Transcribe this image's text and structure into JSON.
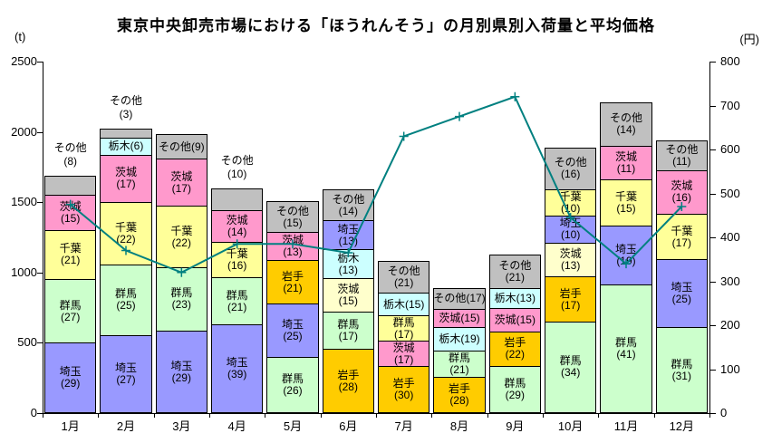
{
  "title": "東京中央卸売市場における「ほうれんそう」の月別県別入荷量と平均価格",
  "left_axis": {
    "unit": "(t)",
    "min": 0,
    "max": 2500,
    "step": 500,
    "tick_labels": [
      "0",
      "500",
      "1000",
      "1500",
      "2000",
      "2500"
    ]
  },
  "right_axis": {
    "unit": "(円)",
    "min": 0,
    "max": 800,
    "step": 100,
    "tick_labels": [
      "0",
      "100",
      "200",
      "300",
      "400",
      "500",
      "600",
      "700",
      "800"
    ]
  },
  "colors": {
    "saitama": "#9999ff",
    "gunma": "#ccffcc",
    "chiba": "#ffff99",
    "ibaraki": "#ff99cc",
    "tochigi": "#ccffff",
    "iwate": "#ffcc00",
    "others": "#c0c0c0",
    "pale_yellow": "#ffffcc",
    "line": "#008080"
  },
  "chart_data": {
    "type": "bar",
    "subtype": "stacked_bar_with_line_overlay",
    "title": "東京中央卸売市場における「ほうれんそう」の月別県別入荷量と平均価格",
    "grid": "off",
    "legend": "none",
    "categories": [
      "1月",
      "2月",
      "3月",
      "4月",
      "5月",
      "6月",
      "7月",
      "8月",
      "9月",
      "10月",
      "11月",
      "12月"
    ],
    "bar_axis": {
      "side": "left",
      "unit": "t",
      "range": [
        0,
        2500
      ]
    },
    "line_axis": {
      "side": "right",
      "unit": "円",
      "range": [
        0,
        800
      ]
    },
    "bar_totals_t": [
      1690,
      2020,
      1985,
      1600,
      1510,
      1590,
      1080,
      890,
      1125,
      1890,
      2210,
      1940
    ],
    "months": [
      {
        "label": "1月",
        "total_t": 1690,
        "others_above": true,
        "segments": [
          {
            "name": "埼玉",
            "pct": 29,
            "color": "#9999ff",
            "lab": "two"
          },
          {
            "name": "群馬",
            "pct": 27,
            "color": "#ccffcc",
            "lab": "two"
          },
          {
            "name": "千葉",
            "pct": 21,
            "color": "#ffff99",
            "lab": "two"
          },
          {
            "name": "茨城",
            "pct": 15,
            "color": "#ff99cc",
            "lab": "two"
          },
          {
            "name": "その他",
            "pct": 8,
            "color": "#c0c0c0",
            "lab": "none"
          }
        ]
      },
      {
        "label": "2月",
        "total_t": 2020,
        "others_above": true,
        "segments": [
          {
            "name": "埼玉",
            "pct": 27,
            "color": "#9999ff",
            "lab": "two"
          },
          {
            "name": "群馬",
            "pct": 25,
            "color": "#ccffcc",
            "lab": "two"
          },
          {
            "name": "千葉",
            "pct": 22,
            "color": "#ffff99",
            "lab": "two"
          },
          {
            "name": "茨城",
            "pct": 17,
            "color": "#ff99cc",
            "lab": "two"
          },
          {
            "name": "栃木",
            "pct": 6,
            "color": "#ccffff",
            "lab": "one"
          },
          {
            "name": "その他",
            "pct": 3,
            "color": "#c0c0c0",
            "lab": "none"
          }
        ]
      },
      {
        "label": "3月",
        "total_t": 1985,
        "others_above": false,
        "segments": [
          {
            "name": "埼玉",
            "pct": 29,
            "color": "#9999ff",
            "lab": "two"
          },
          {
            "name": "群馬",
            "pct": 23,
            "color": "#ccffcc",
            "lab": "two"
          },
          {
            "name": "千葉",
            "pct": 22,
            "color": "#ffff99",
            "lab": "two"
          },
          {
            "name": "茨城",
            "pct": 17,
            "color": "#ff99cc",
            "lab": "two"
          },
          {
            "name": "その他",
            "pct": 9,
            "color": "#c0c0c0",
            "lab": "one"
          }
        ]
      },
      {
        "label": "4月",
        "total_t": 1600,
        "others_above": true,
        "segments": [
          {
            "name": "埼玉",
            "pct": 39,
            "color": "#9999ff",
            "lab": "two"
          },
          {
            "name": "群馬",
            "pct": 21,
            "color": "#ccffcc",
            "lab": "two"
          },
          {
            "name": "千葉",
            "pct": 16,
            "color": "#ffff99",
            "lab": "two"
          },
          {
            "name": "茨城",
            "pct": 14,
            "color": "#ff99cc",
            "lab": "two"
          },
          {
            "name": "その他",
            "pct": 10,
            "color": "#c0c0c0",
            "lab": "none"
          }
        ]
      },
      {
        "label": "5月",
        "total_t": 1510,
        "others_above": false,
        "segments": [
          {
            "name": "群馬",
            "pct": 26,
            "color": "#ccffcc",
            "lab": "two"
          },
          {
            "name": "埼玉",
            "pct": 25,
            "color": "#9999ff",
            "lab": "two"
          },
          {
            "name": "岩手",
            "pct": 21,
            "color": "#ffcc00",
            "lab": "two"
          },
          {
            "name": "茨城",
            "pct": 13,
            "color": "#ff99cc",
            "lab": "two"
          },
          {
            "name": "その他",
            "pct": 15,
            "color": "#c0c0c0",
            "lab": "two"
          }
        ]
      },
      {
        "label": "6月",
        "total_t": 1590,
        "others_above": false,
        "segments": [
          {
            "name": "岩手",
            "pct": 28,
            "color": "#ffcc00",
            "lab": "two"
          },
          {
            "name": "群馬",
            "pct": 17,
            "color": "#ccffcc",
            "lab": "two"
          },
          {
            "name": "茨城",
            "pct": 15,
            "color": "#ffffcc",
            "lab": "two"
          },
          {
            "name": "栃木",
            "pct": 13,
            "color": "#ccffff",
            "lab": "two"
          },
          {
            "name": "埼玉",
            "pct": 13,
            "color": "#9999ff",
            "lab": "two"
          },
          {
            "name": "その他",
            "pct": 14,
            "color": "#c0c0c0",
            "lab": "two"
          }
        ]
      },
      {
        "label": "7月",
        "total_t": 1080,
        "others_above": false,
        "segments": [
          {
            "name": "岩手",
            "pct": 30,
            "color": "#ffcc00",
            "lab": "two"
          },
          {
            "name": "茨城",
            "pct": 17,
            "color": "#ff99cc",
            "lab": "two"
          },
          {
            "name": "群馬",
            "pct": 17,
            "color": "#ffff99",
            "lab": "two"
          },
          {
            "name": "栃木",
            "pct": 15,
            "color": "#ccffff",
            "lab": "one"
          },
          {
            "name": "その他",
            "pct": 21,
            "color": "#c0c0c0",
            "lab": "two"
          }
        ]
      },
      {
        "label": "8月",
        "total_t": 890,
        "others_above": false,
        "segments": [
          {
            "name": "岩手",
            "pct": 28,
            "color": "#ffcc00",
            "lab": "two"
          },
          {
            "name": "群馬",
            "pct": 21,
            "color": "#ccffcc",
            "lab": "two"
          },
          {
            "name": "栃木",
            "pct": 19,
            "color": "#ccffff",
            "lab": "one"
          },
          {
            "name": "茨城",
            "pct": 15,
            "color": "#ff99cc",
            "lab": "one"
          },
          {
            "name": "その他",
            "pct": 17,
            "color": "#c0c0c0",
            "lab": "one"
          }
        ]
      },
      {
        "label": "9月",
        "total_t": 1125,
        "others_above": false,
        "segments": [
          {
            "name": "群馬",
            "pct": 29,
            "color": "#ccffcc",
            "lab": "two"
          },
          {
            "name": "岩手",
            "pct": 22,
            "color": "#ffcc00",
            "lab": "two"
          },
          {
            "name": "茨城",
            "pct": 15,
            "color": "#ff99cc",
            "lab": "one"
          },
          {
            "name": "栃木",
            "pct": 13,
            "color": "#ccffff",
            "lab": "one"
          },
          {
            "name": "その他",
            "pct": 21,
            "color": "#c0c0c0",
            "lab": "two"
          }
        ]
      },
      {
        "label": "10月",
        "total_t": 1890,
        "others_above": false,
        "segments": [
          {
            "name": "群馬",
            "pct": 34,
            "color": "#ccffcc",
            "lab": "two"
          },
          {
            "name": "岩手",
            "pct": 17,
            "color": "#ffcc00",
            "lab": "two"
          },
          {
            "name": "茨城",
            "pct": 13,
            "color": "#ffffcc",
            "lab": "two"
          },
          {
            "name": "埼玉",
            "pct": 10,
            "color": "#9999ff",
            "lab": "two"
          },
          {
            "name": "千葉",
            "pct": 10,
            "color": "#ffff99",
            "lab": "two"
          },
          {
            "name": "その他",
            "pct": 16,
            "color": "#c0c0c0",
            "lab": "two"
          }
        ]
      },
      {
        "label": "11月",
        "total_t": 2210,
        "others_above": false,
        "segments": [
          {
            "name": "群馬",
            "pct": 41,
            "color": "#ccffcc",
            "lab": "two"
          },
          {
            "name": "埼玉",
            "pct": 19,
            "color": "#9999ff",
            "lab": "two"
          },
          {
            "name": "千葉",
            "pct": 15,
            "color": "#ffff99",
            "lab": "two"
          },
          {
            "name": "茨城",
            "pct": 11,
            "color": "#ff99cc",
            "lab": "two"
          },
          {
            "name": "その他",
            "pct": 14,
            "color": "#c0c0c0",
            "lab": "two"
          }
        ]
      },
      {
        "label": "12月",
        "total_t": 1940,
        "others_above": false,
        "segments": [
          {
            "name": "群馬",
            "pct": 31,
            "color": "#ccffcc",
            "lab": "two"
          },
          {
            "name": "埼玉",
            "pct": 25,
            "color": "#9999ff",
            "lab": "two"
          },
          {
            "name": "千葉",
            "pct": 17,
            "color": "#ffff99",
            "lab": "two"
          },
          {
            "name": "茨城",
            "pct": 16,
            "color": "#ff99cc",
            "lab": "two"
          },
          {
            "name": "その他",
            "pct": 11,
            "color": "#c0c0c0",
            "lab": "two"
          }
        ]
      }
    ],
    "line_series": {
      "name": "平均価格",
      "color": "#008080",
      "values_yen": [
        475,
        370,
        320,
        385,
        385,
        365,
        630,
        675,
        720,
        445,
        340,
        470
      ]
    }
  }
}
